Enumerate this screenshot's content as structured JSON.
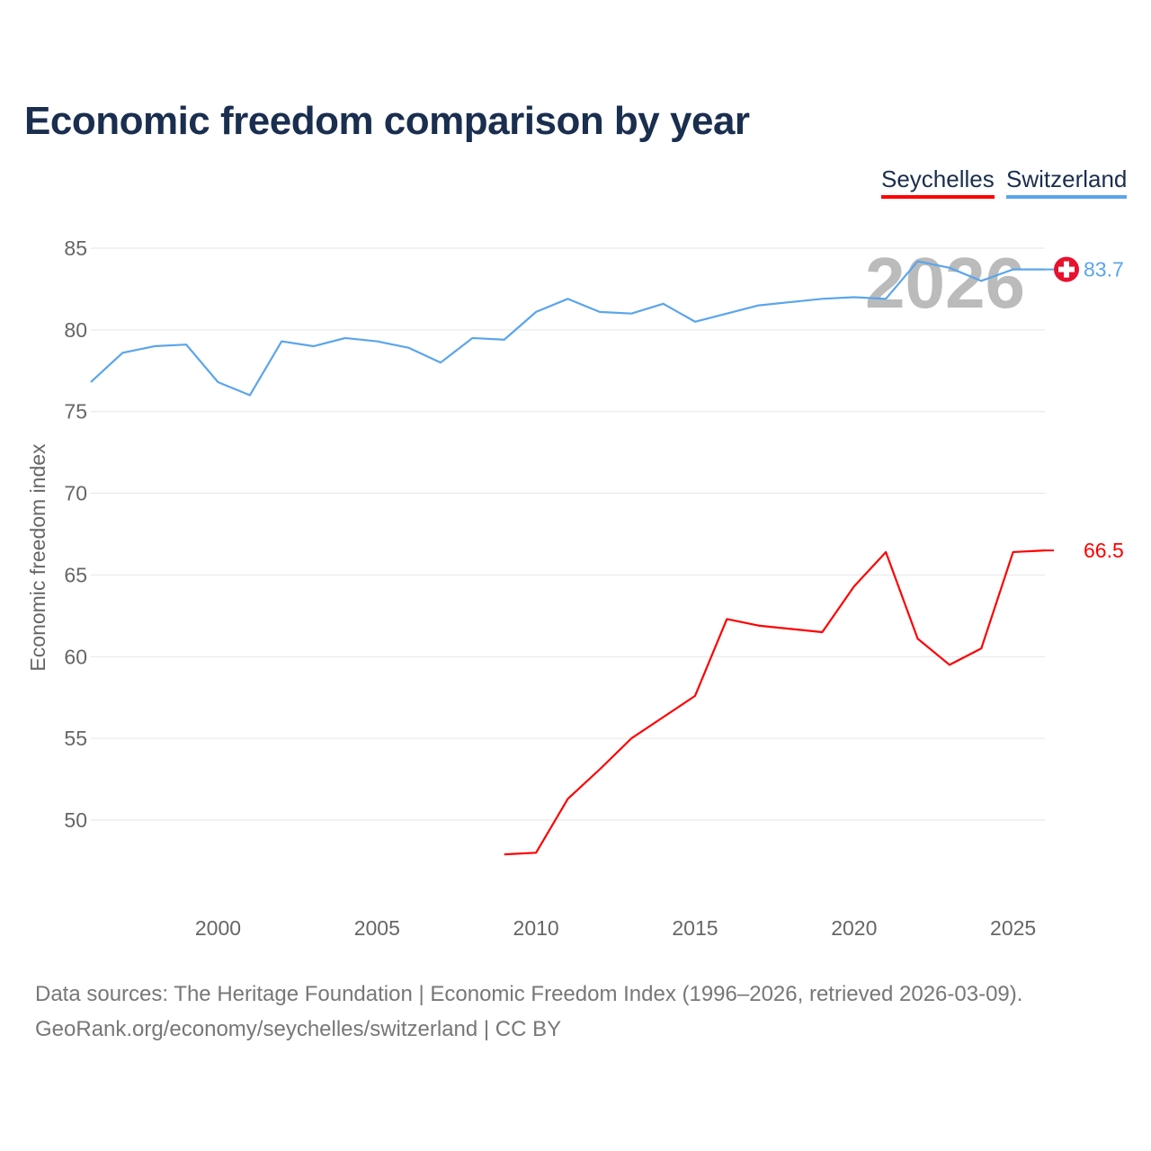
{
  "chart_data": {
    "type": "line",
    "title": "Economic freedom comparison by year",
    "xlabel": "",
    "ylabel": "Economic freedom index",
    "xlim": [
      1996,
      2026
    ],
    "ylim": [
      45,
      87.5
    ],
    "x_ticks": [
      2000,
      2005,
      2010,
      2015,
      2020,
      2025
    ],
    "y_ticks": [
      50,
      55,
      60,
      65,
      70,
      75,
      80,
      85
    ],
    "grid": true,
    "legend_position": "top-right",
    "year_watermark": "2026",
    "series": [
      {
        "name": "Seychelles",
        "color": "#ff0000",
        "end_label": "66.5",
        "x": [
          2009,
          2010,
          2011,
          2012,
          2013,
          2014,
          2015,
          2016,
          2017,
          2018,
          2019,
          2020,
          2021,
          2022,
          2023,
          2024,
          2025,
          2026
        ],
        "values": [
          47.9,
          48.0,
          51.3,
          53.1,
          55.0,
          56.3,
          57.6,
          62.3,
          61.9,
          61.7,
          61.5,
          64.3,
          66.4,
          61.1,
          59.5,
          60.5,
          66.4,
          66.5
        ]
      },
      {
        "name": "Switzerland",
        "color": "#5aa5ec",
        "end_label": "83.7",
        "x": [
          1996,
          1997,
          1998,
          1999,
          2000,
          2001,
          2002,
          2003,
          2004,
          2005,
          2006,
          2007,
          2008,
          2009,
          2010,
          2011,
          2012,
          2013,
          2014,
          2015,
          2016,
          2017,
          2018,
          2019,
          2020,
          2021,
          2022,
          2023,
          2024,
          2025,
          2026
        ],
        "values": [
          76.8,
          78.6,
          79.0,
          79.1,
          76.8,
          76.0,
          79.3,
          79.0,
          79.5,
          79.3,
          78.9,
          78.0,
          79.5,
          79.4,
          81.1,
          81.9,
          81.1,
          81.0,
          81.6,
          80.5,
          81.0,
          81.5,
          81.7,
          81.9,
          82.0,
          81.9,
          84.2,
          83.8,
          83.0,
          83.7,
          83.7
        ]
      }
    ]
  },
  "source_line1": "Data sources: The Heritage Foundation | Economic Freedom Index (1996–2026, retrieved 2026-03-09).",
  "source_line2": "GeoRank.org/economy/seychelles/switzerland | CC BY"
}
